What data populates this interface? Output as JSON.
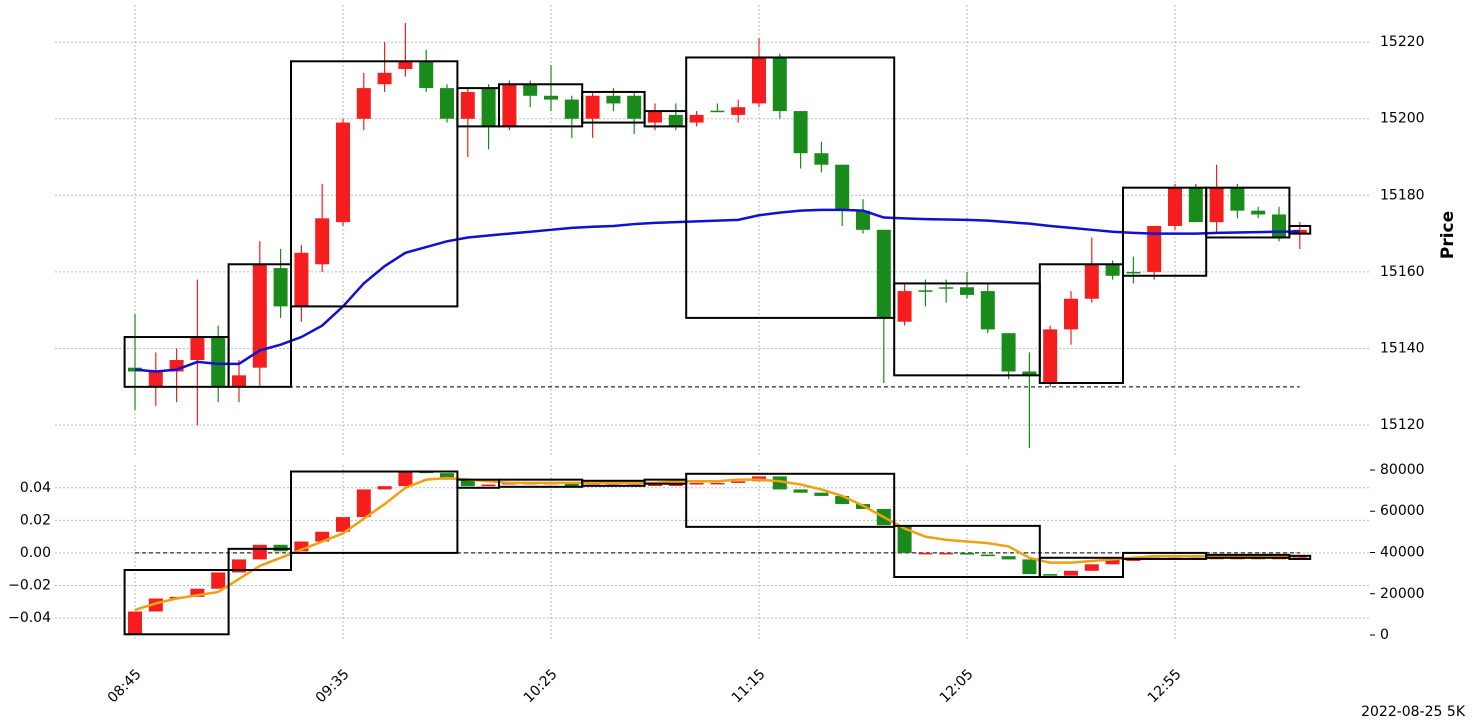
{
  "chart_data": [
    {
      "type": "candlestick",
      "ylabel": "Price",
      "caption": "2022-08-25 5K",
      "up_color": "#f51e1e",
      "down_color": "#1a8a1a",
      "grid": true,
      "categories": [
        "08:45",
        null,
        null,
        null,
        null,
        null,
        null,
        null,
        null,
        null,
        "09:35",
        null,
        null,
        null,
        null,
        null,
        null,
        null,
        null,
        null,
        "10:25",
        null,
        null,
        null,
        null,
        null,
        null,
        null,
        null,
        null,
        "11:15",
        null,
        null,
        null,
        null,
        null,
        null,
        null,
        null,
        null,
        "12:05",
        null,
        null,
        null,
        null,
        null,
        null,
        null,
        null,
        null,
        "12:55",
        null,
        null,
        null,
        null,
        null,
        null
      ],
      "open": [
        15135,
        15130,
        15134,
        15137,
        15143,
        15130,
        15135,
        15161,
        15151,
        15162,
        15173,
        15200,
        15209,
        15213,
        15215,
        15208,
        15200,
        15208,
        15198,
        15209,
        15206,
        15205,
        15200,
        15206,
        15206,
        15199,
        15201,
        15199,
        15202.1,
        15201,
        15204,
        15216,
        15202,
        15191,
        15188,
        15176,
        15171,
        15147,
        15155.2,
        15156,
        15156,
        15155,
        15144,
        15134,
        15131,
        15145,
        15153,
        15162,
        15160,
        15160,
        15172,
        15182,
        15173,
        15182,
        15176,
        15175,
        15170
      ],
      "high": [
        15149,
        15139,
        15140,
        15158,
        15146,
        15137,
        15168,
        15166,
        15167,
        15183,
        15200,
        15212,
        15220,
        15225,
        15218,
        15209,
        15208,
        15209,
        15210,
        15210,
        15214,
        15206,
        15207,
        15208,
        15207,
        15204,
        15204,
        15202,
        15204,
        15205,
        15221,
        15217,
        15202,
        15194,
        15188,
        15179,
        15171,
        15157,
        15158,
        15158,
        15160,
        15157,
        15144,
        15139,
        15146,
        15155,
        15169,
        15163,
        15164,
        15172,
        15183,
        15183,
        15188,
        15183,
        15177,
        15177,
        15173
      ],
      "low": [
        15124,
        15125,
        15126,
        15120,
        15126,
        15126,
        15130,
        15148,
        15147,
        15160,
        15172,
        15197,
        15207,
        15211,
        15207,
        15199,
        15190,
        15192,
        15197,
        15203,
        15202,
        15195,
        15195,
        15202,
        15196,
        15197,
        15197,
        15198,
        15202,
        15199,
        15203,
        15200,
        15187,
        15186,
        15172,
        15170,
        15131,
        15146,
        15151,
        15152,
        15153,
        15144,
        15132,
        15114,
        15130,
        15141,
        15152,
        15158,
        15157,
        15158,
        15171,
        15173,
        15170,
        15174,
        15174,
        15168,
        15166
      ],
      "close": [
        15134,
        15134,
        15137,
        15143,
        15130,
        15133,
        15162,
        15151,
        15165,
        15174,
        15199,
        15208,
        15212,
        15215,
        15208,
        15200,
        15207,
        15198,
        15209,
        15206,
        15205,
        15200,
        15206,
        15204,
        15200,
        15202,
        15198,
        15201,
        15202,
        15203,
        15216,
        15202,
        15191,
        15188,
        15176,
        15171,
        15148,
        15155,
        15155,
        15155.8,
        15154,
        15145,
        15134,
        15133,
        15145,
        15153,
        15162,
        15159,
        15159.7,
        15172,
        15182,
        15173,
        15182,
        15176,
        15175,
        15169,
        15171
      ],
      "lines": [
        {
          "color": "#1010d0",
          "values": [
            15134.5,
            15134,
            15134.5,
            15136.5,
            15136,
            15136,
            15139.5,
            15141,
            15143,
            15146,
            15151,
            15157,
            15161.5,
            15165,
            15166.5,
            15168,
            15169,
            15169.5,
            15170,
            15170.5,
            15171,
            15171.5,
            15171.8,
            15172,
            15172.5,
            15172.8,
            15173,
            15173.2,
            15173.4,
            15173.6,
            15174.8,
            15175.5,
            15176,
            15176.2,
            15176.2,
            15176,
            15174.2,
            15174,
            15173.8,
            15173.7,
            15173.6,
            15173.4,
            15173,
            15172.6,
            15172,
            15171.5,
            15171,
            15170.5,
            15170.2,
            15170,
            15170,
            15170,
            15170.2,
            15170.3,
            15170.4,
            15170.5,
            15170.6
          ]
        }
      ],
      "boxes": [
        {
          "start": 0,
          "end": 4,
          "low": 15130,
          "high": 15143
        },
        {
          "start": 5,
          "end": 7,
          "low": 15130,
          "high": 15162
        },
        {
          "start": 8,
          "end": 15,
          "low": 15151,
          "high": 15215
        },
        {
          "start": 16,
          "end": 17,
          "low": 15198,
          "high": 15208
        },
        {
          "start": 18,
          "end": 21,
          "low": 15198,
          "high": 15209
        },
        {
          "start": 22,
          "end": 24,
          "low": 15199,
          "high": 15207
        },
        {
          "start": 25,
          "end": 26,
          "low": 15198,
          "high": 15202
        },
        {
          "start": 27,
          "end": 36,
          "low": 15148,
          "high": 15216
        },
        {
          "start": 37,
          "end": 43,
          "low": 15133,
          "high": 15157
        },
        {
          "start": 44,
          "end": 47,
          "low": 15131,
          "high": 15162
        },
        {
          "start": 48,
          "end": 51,
          "low": 15159,
          "high": 15182
        },
        {
          "start": 52,
          "end": 55,
          "low": 15169,
          "high": 15182
        },
        {
          "start": 56,
          "end": 56,
          "low": 15170,
          "high": 15172
        }
      ],
      "reference_line": 15130,
      "ylim": [
        15112.2,
        15229.7
      ],
      "yticks": [
        15120,
        15140,
        15160,
        15180,
        15200,
        15220
      ]
    },
    {
      "type": "candlestick",
      "up_color": "#f51e1e",
      "down_color": "#1a8a1a",
      "grid": true,
      "open": [
        -0.05,
        -0.036,
        -0.028,
        -0.027,
        -0.022,
        -0.012,
        -0.004,
        0.005,
        0.001,
        0.007,
        0.013,
        0.022,
        0.039,
        0.041,
        0.05,
        0.049,
        0.045,
        0.041,
        0.042,
        0.043,
        0.043,
        0.043,
        0.041,
        0.042,
        0.042,
        0.042,
        0.042,
        0.042,
        0.043,
        0.043,
        0.044,
        0.047,
        0.039,
        0.037,
        0.035,
        0.03,
        0.027,
        0.017,
        0.0,
        0.0,
        0.0,
        -0.001,
        -0.002,
        -0.004,
        -0.013,
        -0.014,
        -0.011,
        -0.007,
        -0.004,
        -0.004,
        -0.003,
        -0.003,
        -0.003,
        -0.003,
        -0.003,
        -0.003,
        -0.003
      ],
      "close": [
        -0.036,
        -0.028,
        -0.027,
        -0.022,
        -0.012,
        -0.004,
        0.005,
        0.001,
        0.007,
        0.013,
        0.022,
        0.039,
        0.041,
        0.05,
        0.049,
        0.045,
        0.041,
        0.042,
        0.043,
        0.043,
        0.043,
        0.041,
        0.042,
        0.042,
        0.042,
        0.042,
        0.042,
        0.043,
        0.043,
        0.044,
        0.047,
        0.039,
        0.037,
        0.035,
        0.03,
        0.027,
        0.017,
        0.0,
        0.0,
        0.0,
        -0.001,
        -0.002,
        -0.004,
        -0.013,
        -0.014,
        -0.011,
        -0.007,
        -0.004,
        -0.004,
        -0.003,
        -0.003,
        -0.003,
        -0.003,
        -0.003,
        -0.003,
        -0.003,
        -0.002
      ],
      "lines": [
        {
          "color": "#f0a010",
          "values": [
            -0.035,
            -0.031,
            -0.028,
            -0.026,
            -0.024,
            -0.016,
            -0.008,
            -0.003,
            0.002,
            0.007,
            0.012,
            0.021,
            0.03,
            0.04,
            0.045,
            0.046,
            0.045,
            0.044,
            0.043,
            0.043,
            0.043,
            0.043,
            0.043,
            0.043,
            0.043,
            0.043,
            0.044,
            0.044,
            0.044,
            0.045,
            0.045,
            0.044,
            0.042,
            0.039,
            0.035,
            0.029,
            0.022,
            0.015,
            0.01,
            0.008,
            0.007,
            0.006,
            0.004,
            -0.003,
            -0.006,
            -0.006,
            -0.005,
            -0.004,
            -0.003,
            -0.002,
            -0.002,
            -0.002,
            -0.002,
            -0.002,
            -0.002,
            -0.002,
            -0.002
          ]
        }
      ],
      "boxes": [
        {
          "start": 0,
          "end": 4,
          "low": -0.05,
          "high": -0.0105
        },
        {
          "start": 5,
          "end": 7,
          "low": -0.0105,
          "high": 0.0025
        },
        {
          "start": 8,
          "end": 15,
          "low": 0.0,
          "high": 0.05
        },
        {
          "start": 16,
          "end": 17,
          "low": 0.04,
          "high": 0.045
        },
        {
          "start": 18,
          "end": 21,
          "low": 0.0406,
          "high": 0.045
        },
        {
          "start": 22,
          "end": 24,
          "low": 0.0412,
          "high": 0.0443
        },
        {
          "start": 25,
          "end": 26,
          "low": 0.0425,
          "high": 0.045
        },
        {
          "start": 27,
          "end": 36,
          "low": 0.016,
          "high": 0.0486
        },
        {
          "start": 37,
          "end": 43,
          "low": -0.0148,
          "high": 0.0166
        },
        {
          "start": 44,
          "end": 47,
          "low": -0.0148,
          "high": -0.003
        },
        {
          "start": 48,
          "end": 51,
          "low": -0.0037,
          "high": 0.0
        },
        {
          "start": 52,
          "end": 55,
          "low": -0.003,
          "high": -0.0012
        },
        {
          "start": 56,
          "end": 56,
          "low": -0.0037,
          "high": -0.0018
        }
      ],
      "reference_line": 0,
      "ylim": [
        -0.0535,
        0.054
      ],
      "yticks": [
        {
          "value": -0.04,
          "label": "−0.04"
        },
        {
          "value": -0.02,
          "label": "−0.02"
        },
        {
          "value": 0,
          "label": "0.00"
        },
        0.02,
        0.04
      ],
      "y2lim": [
        -2424,
        82424
      ],
      "y2ticks": [
        0,
        20000,
        40000,
        60000,
        80000
      ]
    }
  ]
}
